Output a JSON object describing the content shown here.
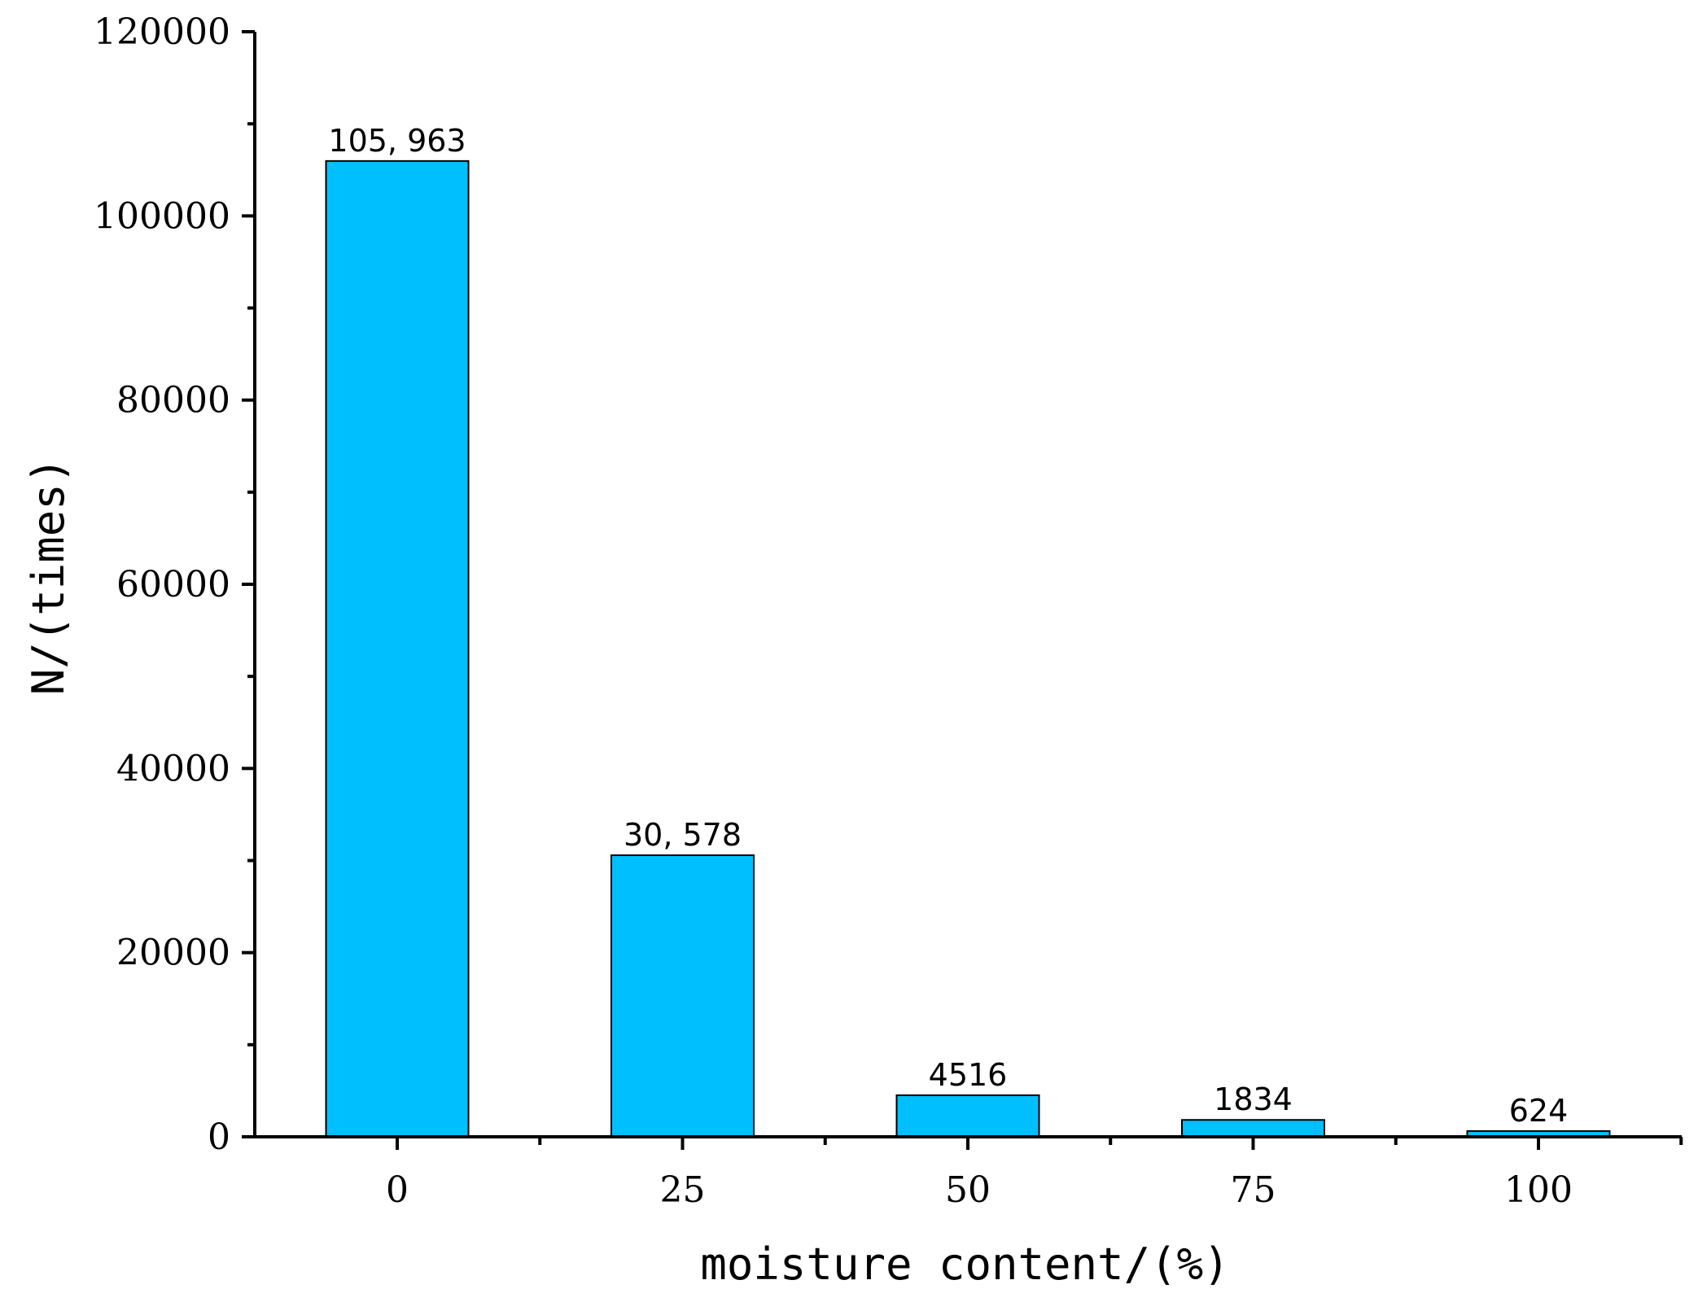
{
  "chart_data": {
    "type": "bar",
    "categories": [
      "0",
      "25",
      "50",
      "75",
      "100"
    ],
    "values": [
      105963,
      30578,
      4516,
      1834,
      624
    ],
    "value_labels": [
      "105, 963",
      "30, 578",
      "4516",
      "1834",
      "624"
    ],
    "xlabel": "moisture content/(%)",
    "ylabel": "N/(times)",
    "ylim": [
      0,
      120000
    ],
    "yticks": [
      0,
      20000,
      40000,
      60000,
      80000,
      100000,
      120000
    ],
    "ytick_labels": [
      "0",
      "20000",
      "40000",
      "60000",
      "80000",
      "100000",
      "120000"
    ],
    "grid": false,
    "legend": "none",
    "bar_color": "#00BFFF"
  }
}
